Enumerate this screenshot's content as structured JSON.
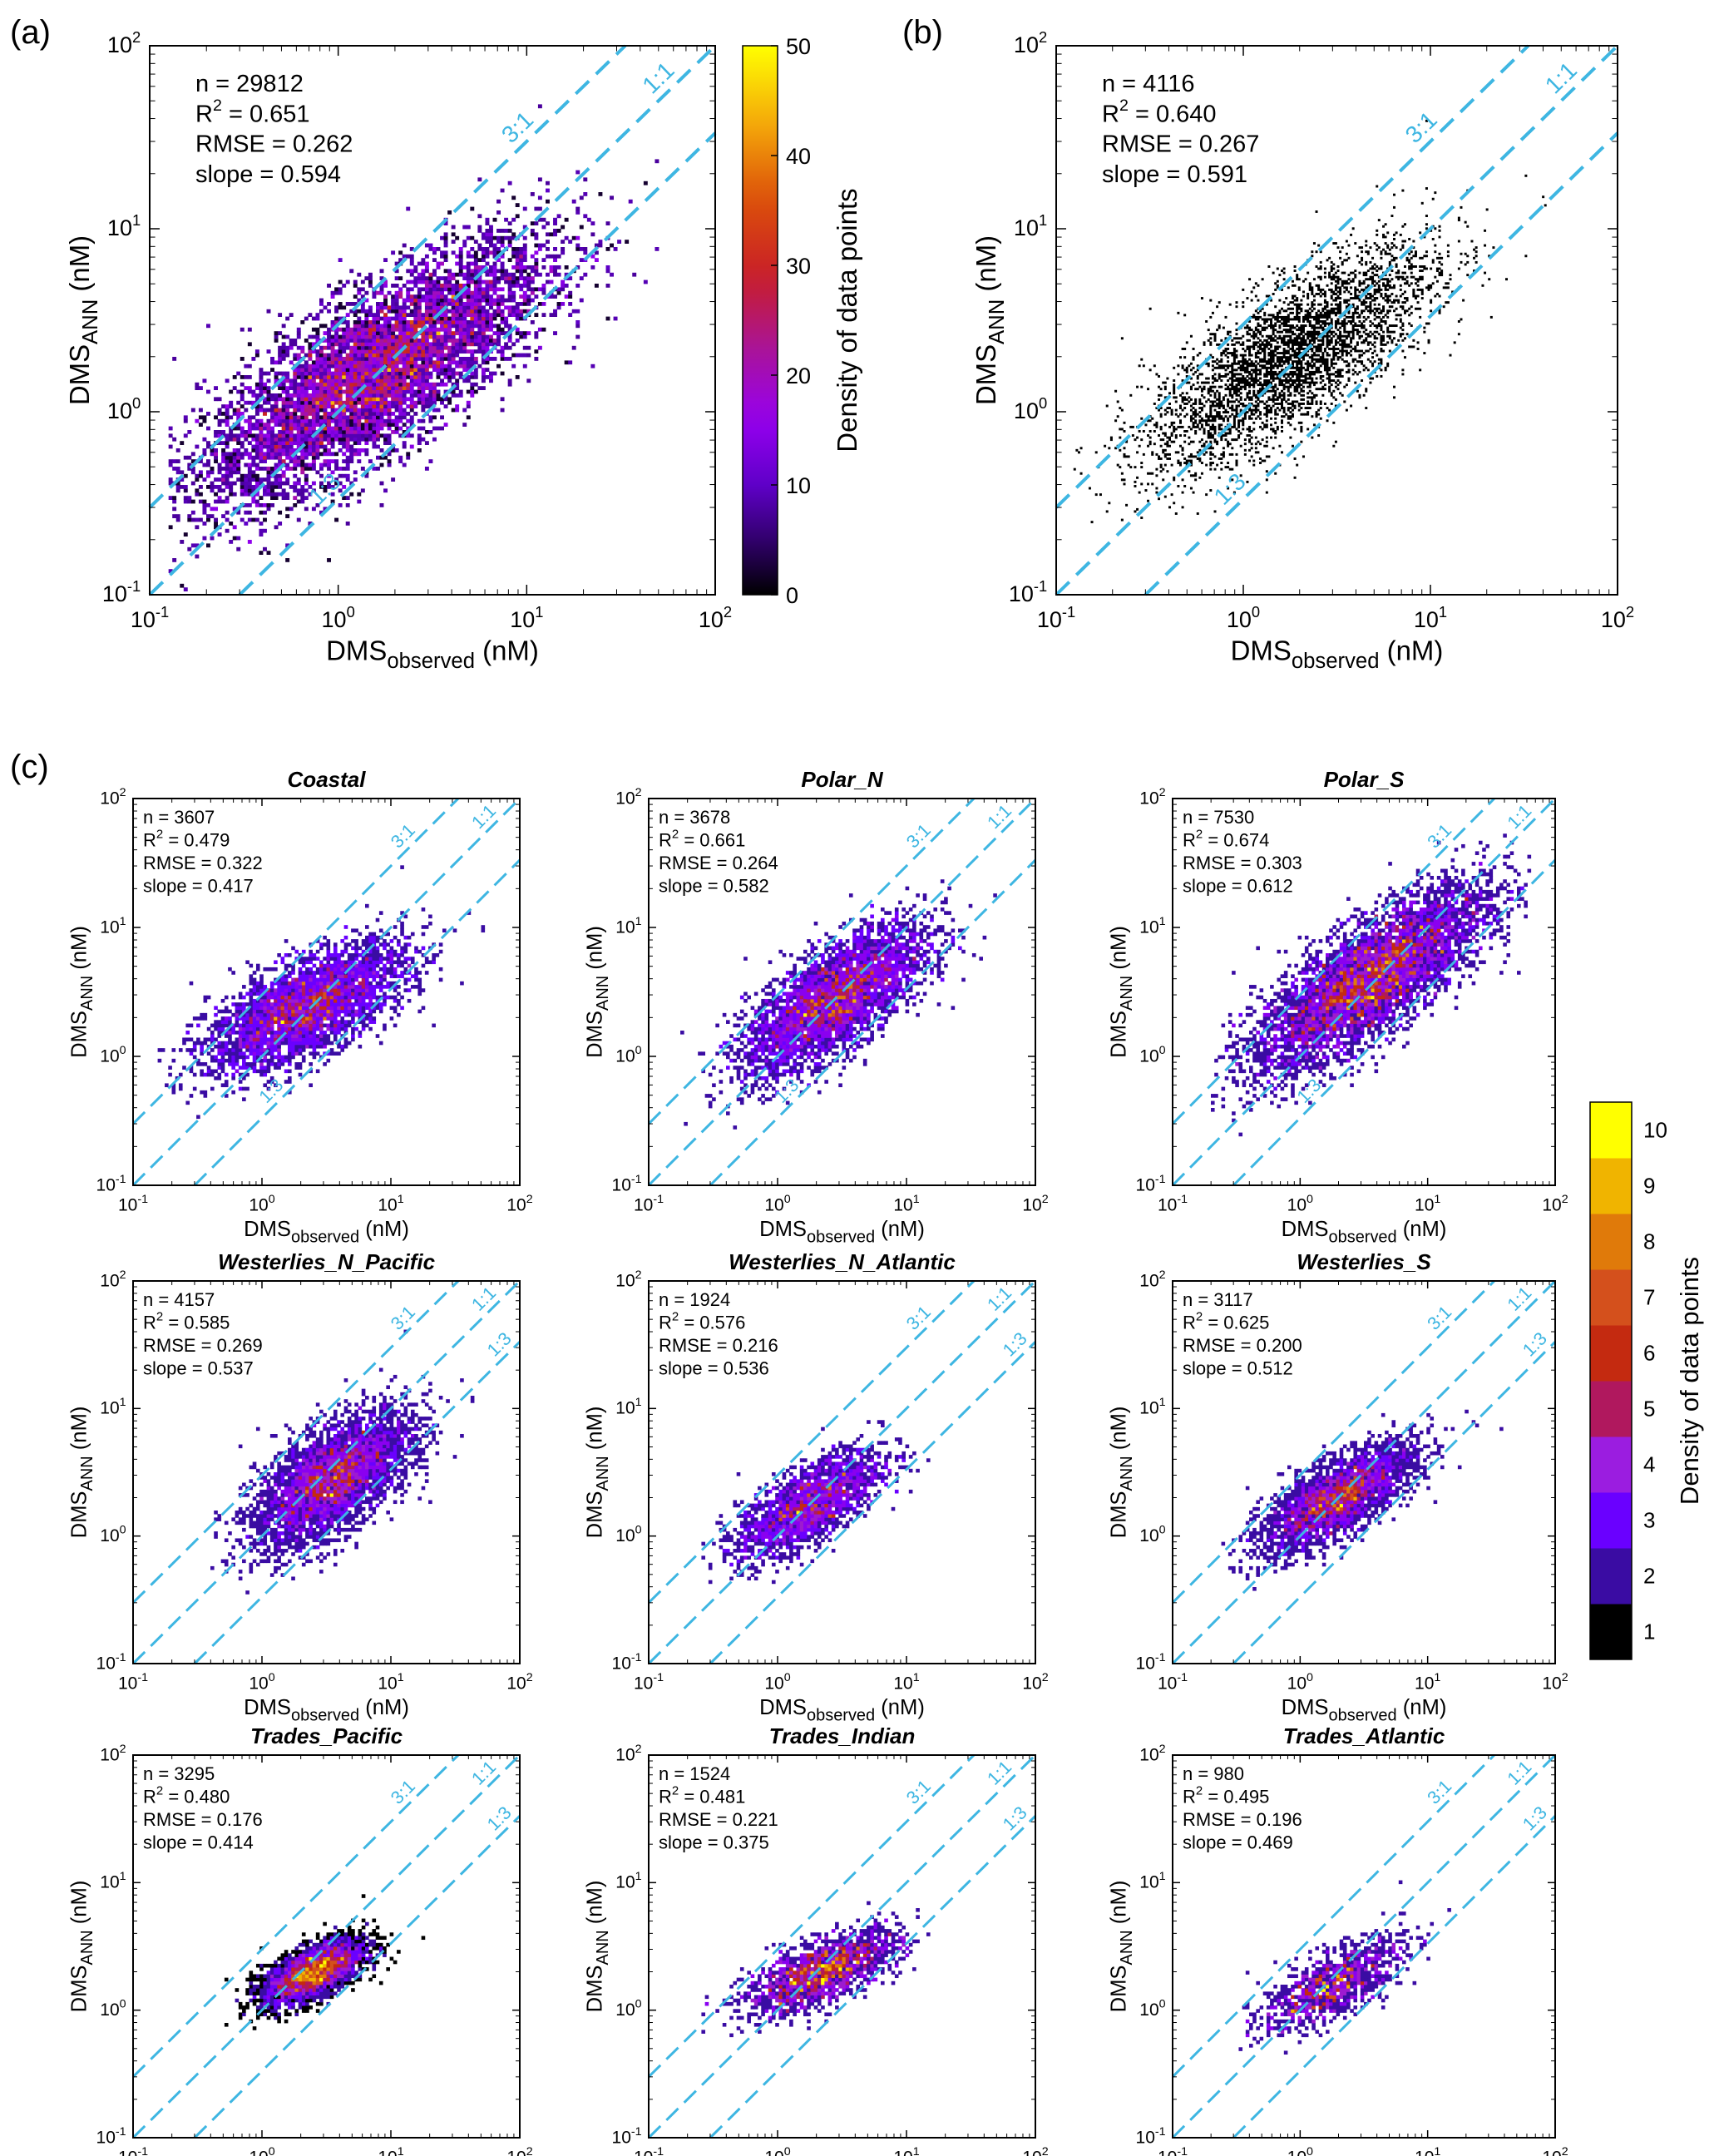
{
  "figure": {
    "panel_labels": [
      "(a)",
      "(b)",
      "(c)"
    ],
    "colorbar_large": {
      "label": "Density of data points",
      "ticks": [
        "0",
        "10",
        "20",
        "30",
        "40",
        "50"
      ],
      "range": [
        0,
        50
      ]
    },
    "colorbar_small": {
      "label": "Density of data points",
      "ticks": [
        "1",
        "2",
        "3",
        "4",
        "5",
        "6",
        "7",
        "8",
        "9",
        "10"
      ],
      "range": [
        1,
        10
      ]
    },
    "ratio_labels": {
      "upper": "3:1",
      "middle": "1:1",
      "lower": "1:3"
    },
    "line_color": "#3EB6E2",
    "axis_ticks": [
      "10",
      "10",
      "10",
      "10"
    ],
    "axis_tick_exponents": [
      "-1",
      "0",
      "1",
      "2"
    ],
    "xlabel_main": "DMS",
    "xlabel_sub": "observed",
    "xlabel_unit": "(nM)",
    "ylabel_main": "DMS",
    "ylabel_sub": "ANN",
    "ylabel_unit": "(nM)"
  },
  "chart_data": [
    {
      "id": "a",
      "type": "heatmap",
      "title": "",
      "xlim": [
        0.1,
        100
      ],
      "ylim": [
        0.1,
        100
      ],
      "xscale": "log",
      "yscale": "log",
      "stats": {
        "n": "n = 29812",
        "r2": "0.651",
        "rmse": "RMSE = 0.262",
        "slope": "slope = 0.594"
      },
      "density_center": [
        1.5,
        1.5
      ],
      "density_peak": 50
    },
    {
      "id": "b",
      "type": "scatter",
      "title": "",
      "xlim": [
        0.1,
        100
      ],
      "ylim": [
        0.1,
        100
      ],
      "xscale": "log",
      "yscale": "log",
      "stats": {
        "n": "n = 4116",
        "r2": "0.640",
        "rmse": "RMSE = 0.267",
        "slope": "slope = 0.591"
      }
    },
    {
      "id": "coastal",
      "type": "heatmap",
      "title": "Coastal",
      "xlim": [
        0.1,
        100
      ],
      "ylim": [
        0.1,
        100
      ],
      "xscale": "log",
      "yscale": "log",
      "stats": {
        "n": "n = 3607",
        "r2": "0.479",
        "rmse": "RMSE = 0.322",
        "slope": "slope = 0.417"
      }
    },
    {
      "id": "polar_n",
      "type": "heatmap",
      "title": "Polar_N",
      "xlim": [
        0.1,
        100
      ],
      "ylim": [
        0.1,
        100
      ],
      "xscale": "log",
      "yscale": "log",
      "stats": {
        "n": "n = 3678",
        "r2": "0.661",
        "rmse": "RMSE = 0.264",
        "slope": "slope = 0.582"
      }
    },
    {
      "id": "polar_s",
      "type": "heatmap",
      "title": "Polar_S",
      "xlim": [
        0.1,
        100
      ],
      "ylim": [
        0.1,
        100
      ],
      "xscale": "log",
      "yscale": "log",
      "stats": {
        "n": "n = 7530",
        "r2": "0.674",
        "rmse": "RMSE = 0.303",
        "slope": "slope = 0.612"
      }
    },
    {
      "id": "westerlies_n_pacific",
      "type": "heatmap",
      "title": "Westerlies_N_Pacific",
      "xlim": [
        0.1,
        100
      ],
      "ylim": [
        0.1,
        100
      ],
      "xscale": "log",
      "yscale": "log",
      "stats": {
        "n": "n = 4157",
        "r2": "0.585",
        "rmse": "RMSE = 0.269",
        "slope": "slope = 0.537"
      }
    },
    {
      "id": "westerlies_n_atlantic",
      "type": "heatmap",
      "title": "Westerlies_N_Atlantic",
      "xlim": [
        0.1,
        100
      ],
      "ylim": [
        0.1,
        100
      ],
      "xscale": "log",
      "yscale": "log",
      "stats": {
        "n": "n = 1924",
        "r2": "0.576",
        "rmse": "RMSE = 0.216",
        "slope": "slope = 0.536"
      }
    },
    {
      "id": "westerlies_s",
      "type": "heatmap",
      "title": "Westerlies_S",
      "xlim": [
        0.1,
        100
      ],
      "ylim": [
        0.1,
        100
      ],
      "xscale": "log",
      "yscale": "log",
      "stats": {
        "n": "n = 3117",
        "r2": "0.625",
        "rmse": "RMSE = 0.200",
        "slope": "slope = 0.512"
      }
    },
    {
      "id": "trades_pacific",
      "type": "heatmap",
      "title": "Trades_Pacific",
      "xlim": [
        0.1,
        100
      ],
      "ylim": [
        0.1,
        100
      ],
      "xscale": "log",
      "yscale": "log",
      "stats": {
        "n": "n = 3295",
        "r2": "0.480",
        "rmse": "RMSE = 0.176",
        "slope": "slope = 0.414"
      }
    },
    {
      "id": "trades_indian",
      "type": "heatmap",
      "title": "Trades_Indian",
      "xlim": [
        0.1,
        100
      ],
      "ylim": [
        0.1,
        100
      ],
      "xscale": "log",
      "yscale": "log",
      "stats": {
        "n": "n = 1524",
        "r2": "0.481",
        "rmse": "RMSE = 0.221",
        "slope": "slope = 0.375"
      }
    },
    {
      "id": "trades_atlantic",
      "type": "heatmap",
      "title": "Trades_Atlantic",
      "xlim": [
        0.1,
        100
      ],
      "ylim": [
        0.1,
        100
      ],
      "xscale": "log",
      "yscale": "log",
      "stats": {
        "n": "n = 980",
        "r2": "0.495",
        "rmse": "RMSE = 0.196",
        "slope": "slope = 0.469"
      }
    }
  ]
}
